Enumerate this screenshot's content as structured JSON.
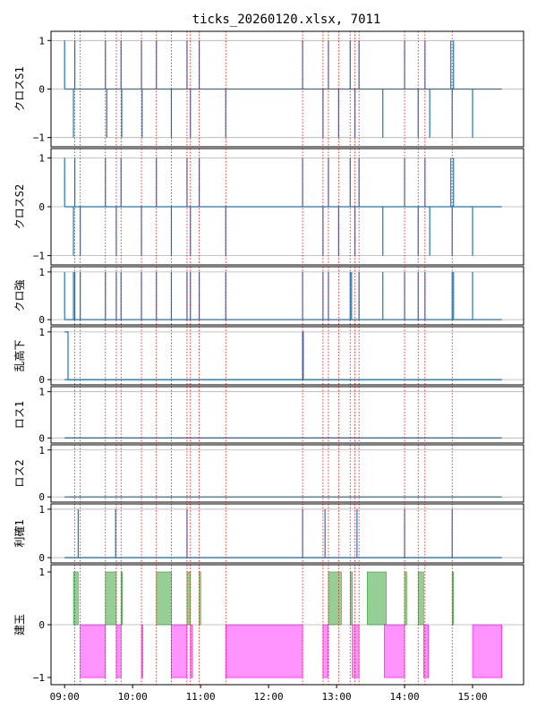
{
  "chart_data": {
    "type": "line",
    "title": "ticks_20260120.xlsx, 7011",
    "x_axis": {
      "range_hours": [
        8.8,
        15.75
      ],
      "tick_values": [
        9,
        10,
        11,
        12,
        13,
        14,
        15
      ],
      "tick_labels": [
        "09:00",
        "10:00",
        "11:00",
        "12:00",
        "13:00",
        "14:00",
        "15:00"
      ]
    },
    "colors": {
      "line": "#1f77b4",
      "vline": "#ff0000",
      "long_fill": "#2ca02c",
      "short_fill": "#ff00ff",
      "grid": "#b0b0b0",
      "frame": "#000000"
    },
    "vertical_markers_hours": [
      9.15,
      9.23,
      9.6,
      9.76,
      9.83,
      10.13,
      10.35,
      10.57,
      10.8,
      10.85,
      10.98,
      11.37,
      12.5,
      12.8,
      12.88,
      13.03,
      13.2,
      13.27,
      13.33,
      14.0,
      14.2,
      14.3,
      14.7
    ],
    "session": {
      "start_hour": 9.0,
      "end_hour": 15.43
    },
    "panels": [
      {
        "name": "cross-s1",
        "ylabel": "クロスS1",
        "ylim": [
          -1,
          1
        ],
        "yticks": [
          -1,
          0,
          1
        ],
        "grid_values": [
          1,
          0,
          -1
        ],
        "baseline": 0,
        "pulses": [
          [
            9.0,
            1
          ],
          [
            9.13,
            -1
          ],
          [
            9.15,
            1
          ],
          [
            9.6,
            1
          ],
          [
            9.62,
            -1
          ],
          [
            9.83,
            1
          ],
          [
            9.84,
            -1
          ],
          [
            10.13,
            1
          ],
          [
            10.14,
            -1
          ],
          [
            10.35,
            1
          ],
          [
            10.57,
            -1
          ],
          [
            10.8,
            1
          ],
          [
            10.85,
            -1
          ],
          [
            10.98,
            1
          ],
          [
            11.37,
            -1
          ],
          [
            12.5,
            1
          ],
          [
            12.8,
            -1
          ],
          [
            12.88,
            1
          ],
          [
            13.03,
            -1
          ],
          [
            13.2,
            1
          ],
          [
            13.27,
            -1
          ],
          [
            13.33,
            1
          ],
          [
            13.68,
            -1
          ],
          [
            14.0,
            1
          ],
          [
            14.2,
            -1
          ],
          [
            14.3,
            1
          ],
          [
            14.37,
            -1
          ],
          [
            14.68,
            1
          ],
          [
            14.7,
            -1
          ],
          [
            14.72,
            1
          ],
          [
            15.0,
            -1
          ]
        ]
      },
      {
        "name": "cross-s2",
        "ylabel": "クロスS2",
        "ylim": [
          -1,
          1
        ],
        "yticks": [
          -1,
          0,
          1
        ],
        "grid_values": [
          1,
          0,
          -1
        ],
        "baseline": 0,
        "pulses": [
          [
            9.0,
            1
          ],
          [
            9.13,
            -1
          ],
          [
            9.15,
            1
          ],
          [
            9.23,
            -1
          ],
          [
            9.6,
            1
          ],
          [
            9.76,
            -1
          ],
          [
            9.83,
            1
          ],
          [
            10.13,
            -1
          ],
          [
            10.35,
            1
          ],
          [
            10.57,
            -1
          ],
          [
            10.8,
            1
          ],
          [
            10.85,
            -1
          ],
          [
            10.98,
            1
          ],
          [
            11.37,
            -1
          ],
          [
            12.5,
            1
          ],
          [
            12.8,
            -1
          ],
          [
            12.88,
            1
          ],
          [
            13.03,
            -1
          ],
          [
            13.2,
            1
          ],
          [
            13.27,
            -1
          ],
          [
            13.33,
            1
          ],
          [
            13.68,
            -1
          ],
          [
            14.0,
            1
          ],
          [
            14.2,
            -1
          ],
          [
            14.3,
            1
          ],
          [
            14.37,
            -1
          ],
          [
            14.68,
            1
          ],
          [
            14.7,
            -1
          ],
          [
            14.72,
            1
          ],
          [
            15.0,
            -1
          ]
        ]
      },
      {
        "name": "cross-strength",
        "ylabel": "クロ強",
        "ylim": [
          0,
          1
        ],
        "yticks": [
          0,
          1
        ],
        "grid_values": [
          1,
          0
        ],
        "baseline": 0,
        "pulses": [
          [
            9.0,
            1
          ],
          [
            9.13,
            1
          ],
          [
            9.15,
            1
          ],
          [
            9.23,
            1
          ],
          [
            9.6,
            1
          ],
          [
            9.76,
            1
          ],
          [
            9.83,
            1
          ],
          [
            10.13,
            1
          ],
          [
            10.35,
            1
          ],
          [
            10.57,
            1
          ],
          [
            10.8,
            1
          ],
          [
            10.85,
            1
          ],
          [
            10.98,
            1
          ],
          [
            11.37,
            1
          ],
          [
            12.5,
            1
          ],
          [
            12.8,
            1
          ],
          [
            12.88,
            1
          ],
          [
            13.2,
            1
          ],
          [
            13.22,
            1
          ],
          [
            13.33,
            1
          ],
          [
            13.68,
            1
          ],
          [
            14.0,
            1
          ],
          [
            14.2,
            1
          ],
          [
            14.3,
            1
          ],
          [
            14.7,
            1
          ],
          [
            14.72,
            1
          ],
          [
            15.0,
            1
          ]
        ]
      },
      {
        "name": "sudden-drop",
        "ylabel": "乱高下",
        "ylim": [
          0,
          1
        ],
        "yticks": [
          0,
          1
        ],
        "grid_values": [
          1,
          0
        ],
        "baseline": 0,
        "steps": [
          [
            9.0,
            1
          ],
          [
            9.05,
            0
          ],
          [
            12.5,
            1
          ],
          [
            12.51,
            0
          ]
        ]
      },
      {
        "name": "loss-1",
        "ylabel": "ロス1",
        "ylim": [
          0,
          1
        ],
        "yticks": [
          0,
          1
        ],
        "grid_values": [
          1,
          0
        ],
        "baseline": 0,
        "pulses": []
      },
      {
        "name": "loss-2",
        "ylabel": "ロス2",
        "ylim": [
          0,
          1
        ],
        "yticks": [
          0,
          1
        ],
        "grid_values": [
          1,
          0
        ],
        "baseline": 0,
        "pulses": []
      },
      {
        "name": "profit-1",
        "ylabel": "利確1",
        "ylim": [
          0,
          1
        ],
        "yticks": [
          0,
          1
        ],
        "grid_values": [
          1,
          0
        ],
        "baseline": 0,
        "pulses": [
          [
            9.2,
            1
          ],
          [
            9.75,
            1
          ],
          [
            10.8,
            1
          ],
          [
            12.5,
            1
          ],
          [
            12.83,
            1
          ],
          [
            13.3,
            1
          ],
          [
            14.0,
            1
          ],
          [
            14.7,
            1
          ]
        ]
      },
      {
        "name": "position",
        "ylabel": "建玉",
        "ylim": [
          -1,
          1
        ],
        "yticks": [
          -1,
          0,
          1
        ],
        "grid_values": [
          0
        ],
        "baseline": 0,
        "fills": [
          [
            9.13,
            9.2,
            1
          ],
          [
            9.23,
            9.6,
            -1
          ],
          [
            9.6,
            9.76,
            1
          ],
          [
            9.76,
            9.83,
            -1
          ],
          [
            9.83,
            9.85,
            1
          ],
          [
            10.13,
            10.15,
            -1
          ],
          [
            10.35,
            10.57,
            1
          ],
          [
            10.57,
            10.8,
            -1
          ],
          [
            10.8,
            10.85,
            1
          ],
          [
            10.85,
            10.88,
            -1
          ],
          [
            10.98,
            11.0,
            1
          ],
          [
            11.37,
            12.5,
            -1
          ],
          [
            12.8,
            12.87,
            -1
          ],
          [
            12.88,
            13.07,
            1
          ],
          [
            13.2,
            13.23,
            1
          ],
          [
            13.23,
            13.33,
            -1
          ],
          [
            13.45,
            13.73,
            1
          ],
          [
            13.7,
            14.0,
            -1
          ],
          [
            14.0,
            14.03,
            1
          ],
          [
            14.2,
            14.28,
            1
          ],
          [
            14.28,
            14.35,
            -1
          ],
          [
            14.7,
            14.72,
            1
          ],
          [
            15.0,
            15.43,
            -1
          ]
        ]
      }
    ]
  }
}
